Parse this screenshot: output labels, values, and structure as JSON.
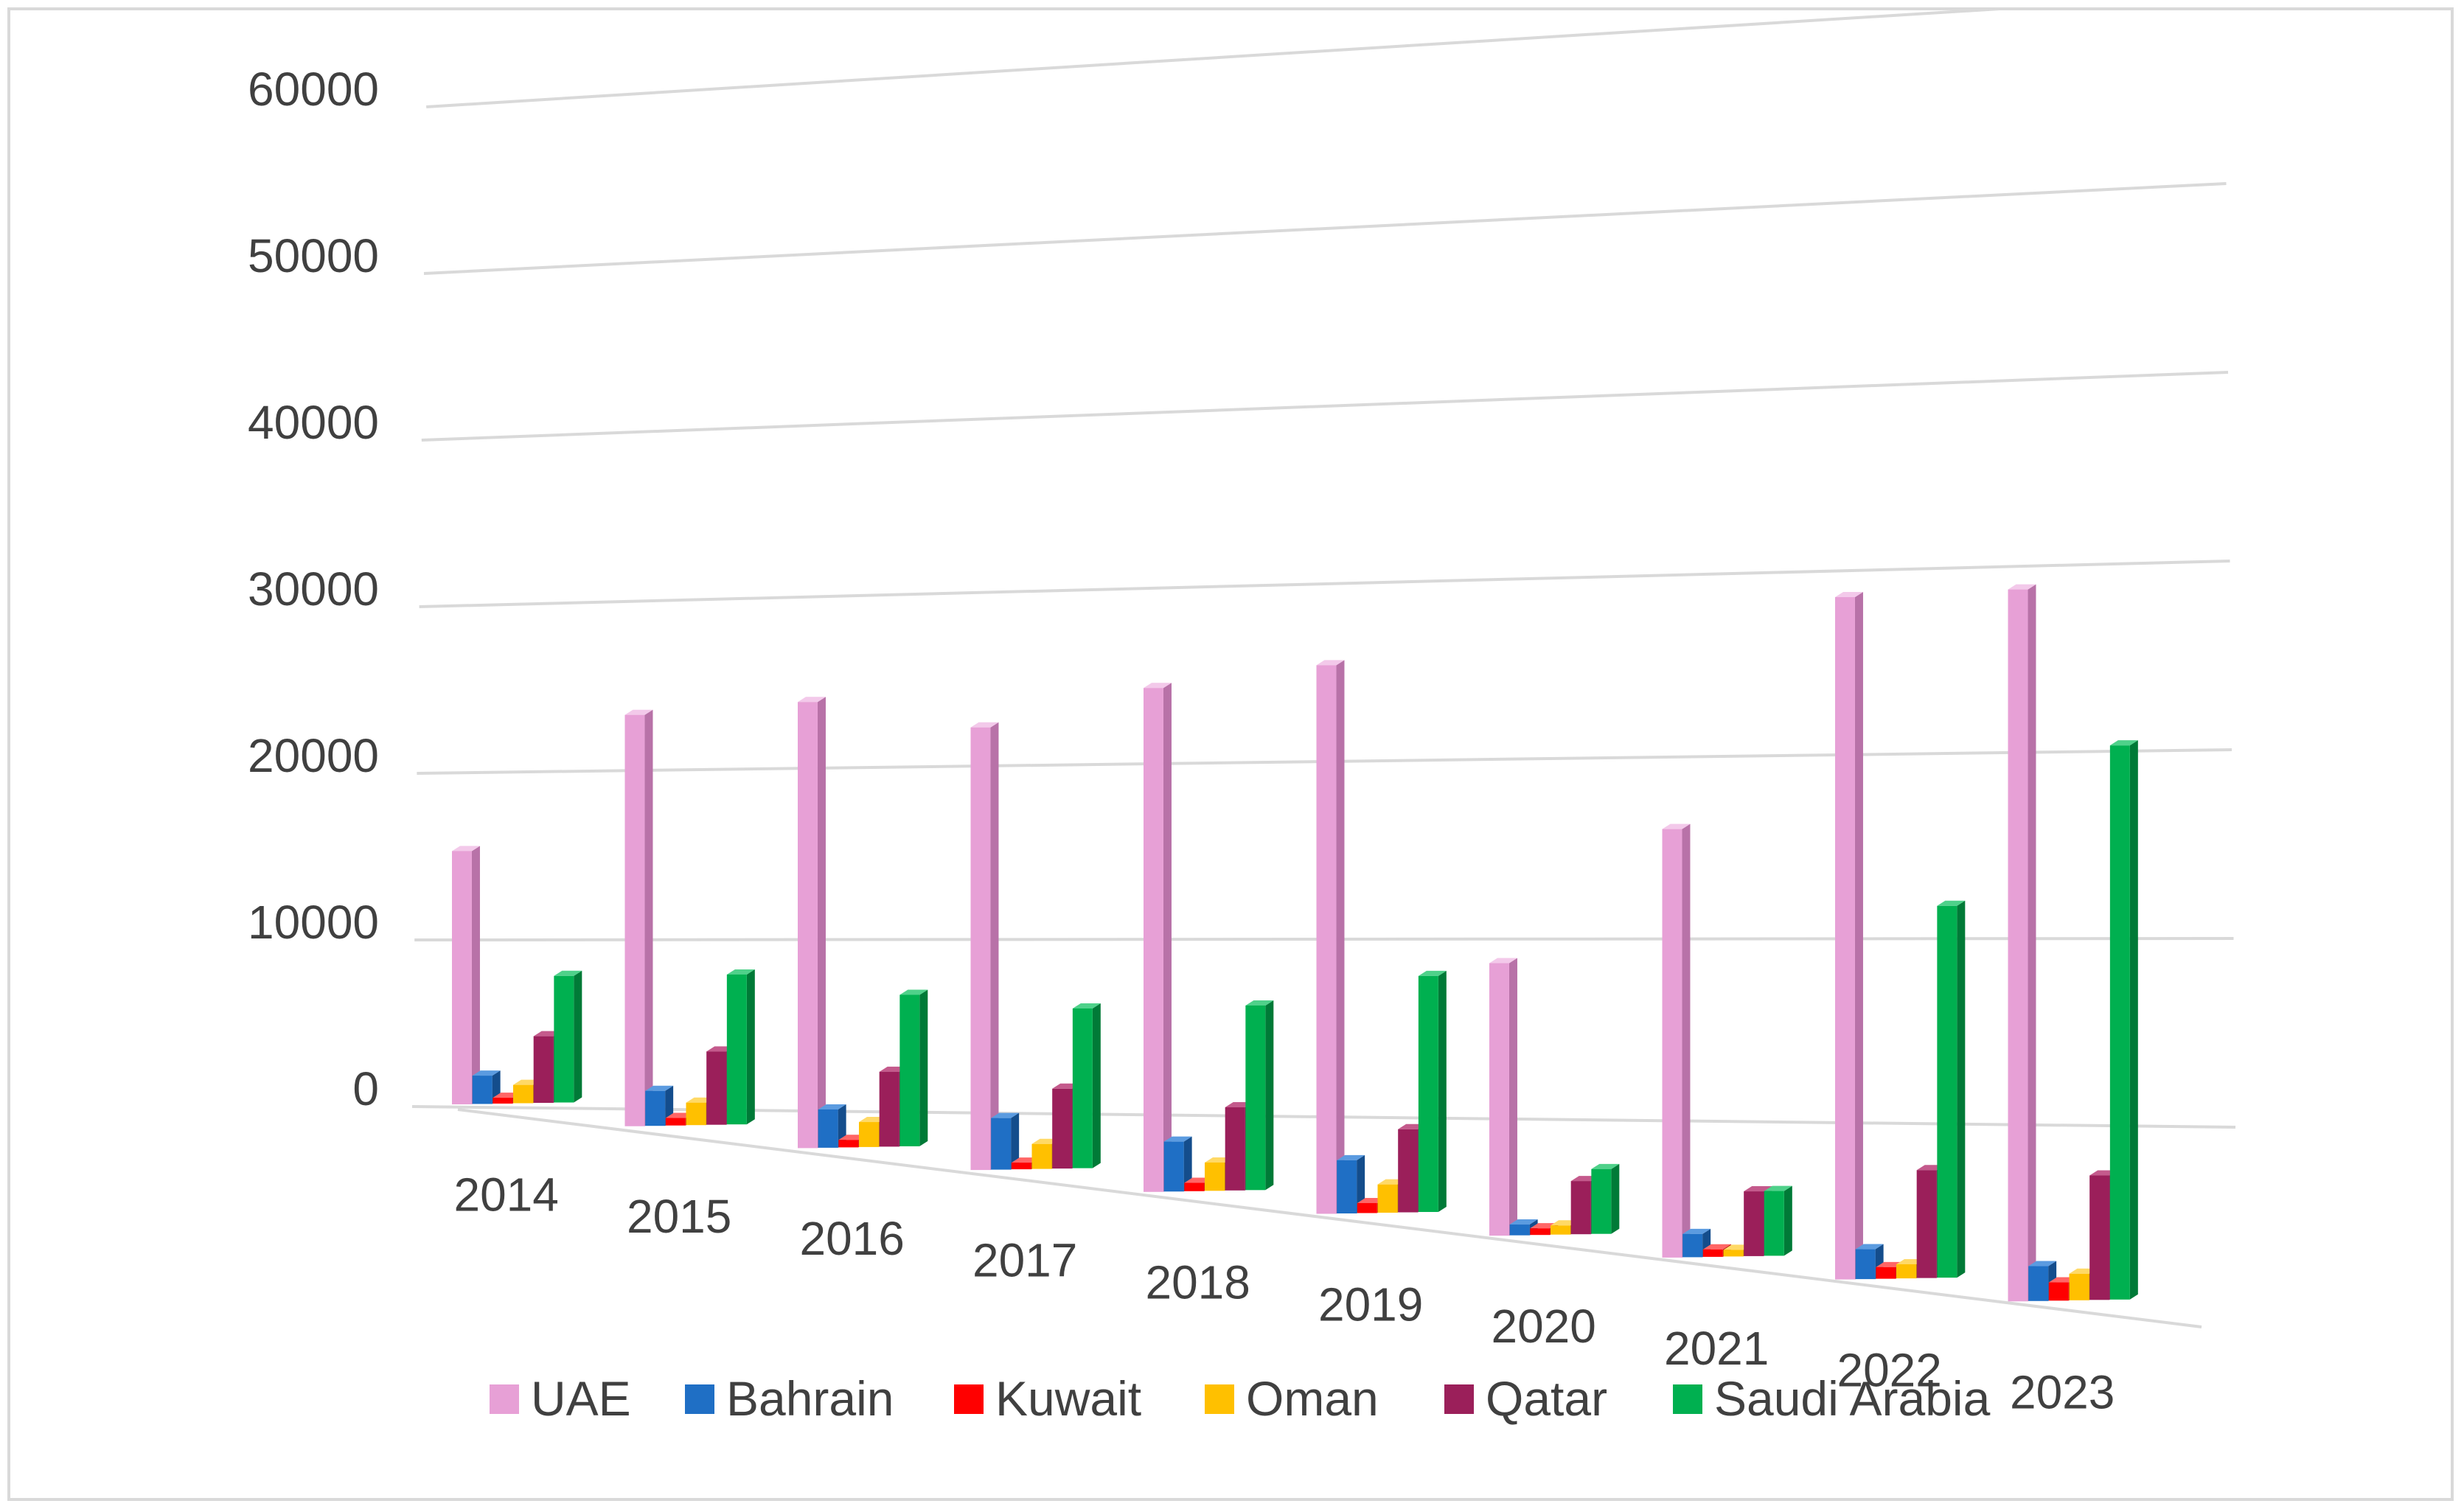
{
  "chart_data": {
    "type": "bar",
    "subtype": "3d-clustered-column",
    "title": "",
    "xlabel": "",
    "ylabel": "",
    "ylim": [
      0,
      60000
    ],
    "y_ticks": [
      "0",
      "10000",
      "20000",
      "30000",
      "40000",
      "50000",
      "60000"
    ],
    "grid": true,
    "legend_position": "bottom",
    "categories": [
      "2014",
      "2015",
      "2016",
      "2017",
      "2018",
      "2019",
      "2020",
      "2021",
      "2022",
      "2023"
    ],
    "series": [
      {
        "name": "UAE",
        "color": "#e7a0d6",
        "side": "#b872a8",
        "top": "#f3c9ea",
        "values": [
          15200,
          24700,
          26800,
          26600,
          30300,
          33000,
          16400,
          25800,
          41100,
          42900
        ]
      },
      {
        "name": "Bahrain",
        "color": "#1f6fc5",
        "side": "#144d8c",
        "top": "#5b9be0",
        "values": [
          1700,
          2100,
          2300,
          3100,
          3000,
          3200,
          650,
          1400,
          1800,
          2100
        ]
      },
      {
        "name": "Kuwait",
        "color": "#ff0000",
        "side": "#b30000",
        "top": "#ff6666",
        "values": [
          350,
          450,
          450,
          400,
          500,
          600,
          400,
          450,
          700,
          1100
        ]
      },
      {
        "name": "Oman",
        "color": "#ffc000",
        "side": "#c99700",
        "top": "#ffd966",
        "values": [
          1100,
          1350,
          1500,
          1500,
          1700,
          1700,
          550,
          400,
          850,
          1600
        ]
      },
      {
        "name": "Qatar",
        "color": "#9b1f5a",
        "side": "#6b1540",
        "top": "#c45a8c",
        "values": [
          4000,
          4400,
          4500,
          4800,
          5000,
          5000,
          3200,
          3900,
          6500,
          7500
        ]
      },
      {
        "name": "Saudi Arabia",
        "color": "#00b050",
        "side": "#007a37",
        "top": "#4fd18a",
        "values": [
          7600,
          9000,
          9100,
          9600,
          11100,
          14200,
          3900,
          3900,
          22400,
          33400
        ]
      }
    ]
  }
}
